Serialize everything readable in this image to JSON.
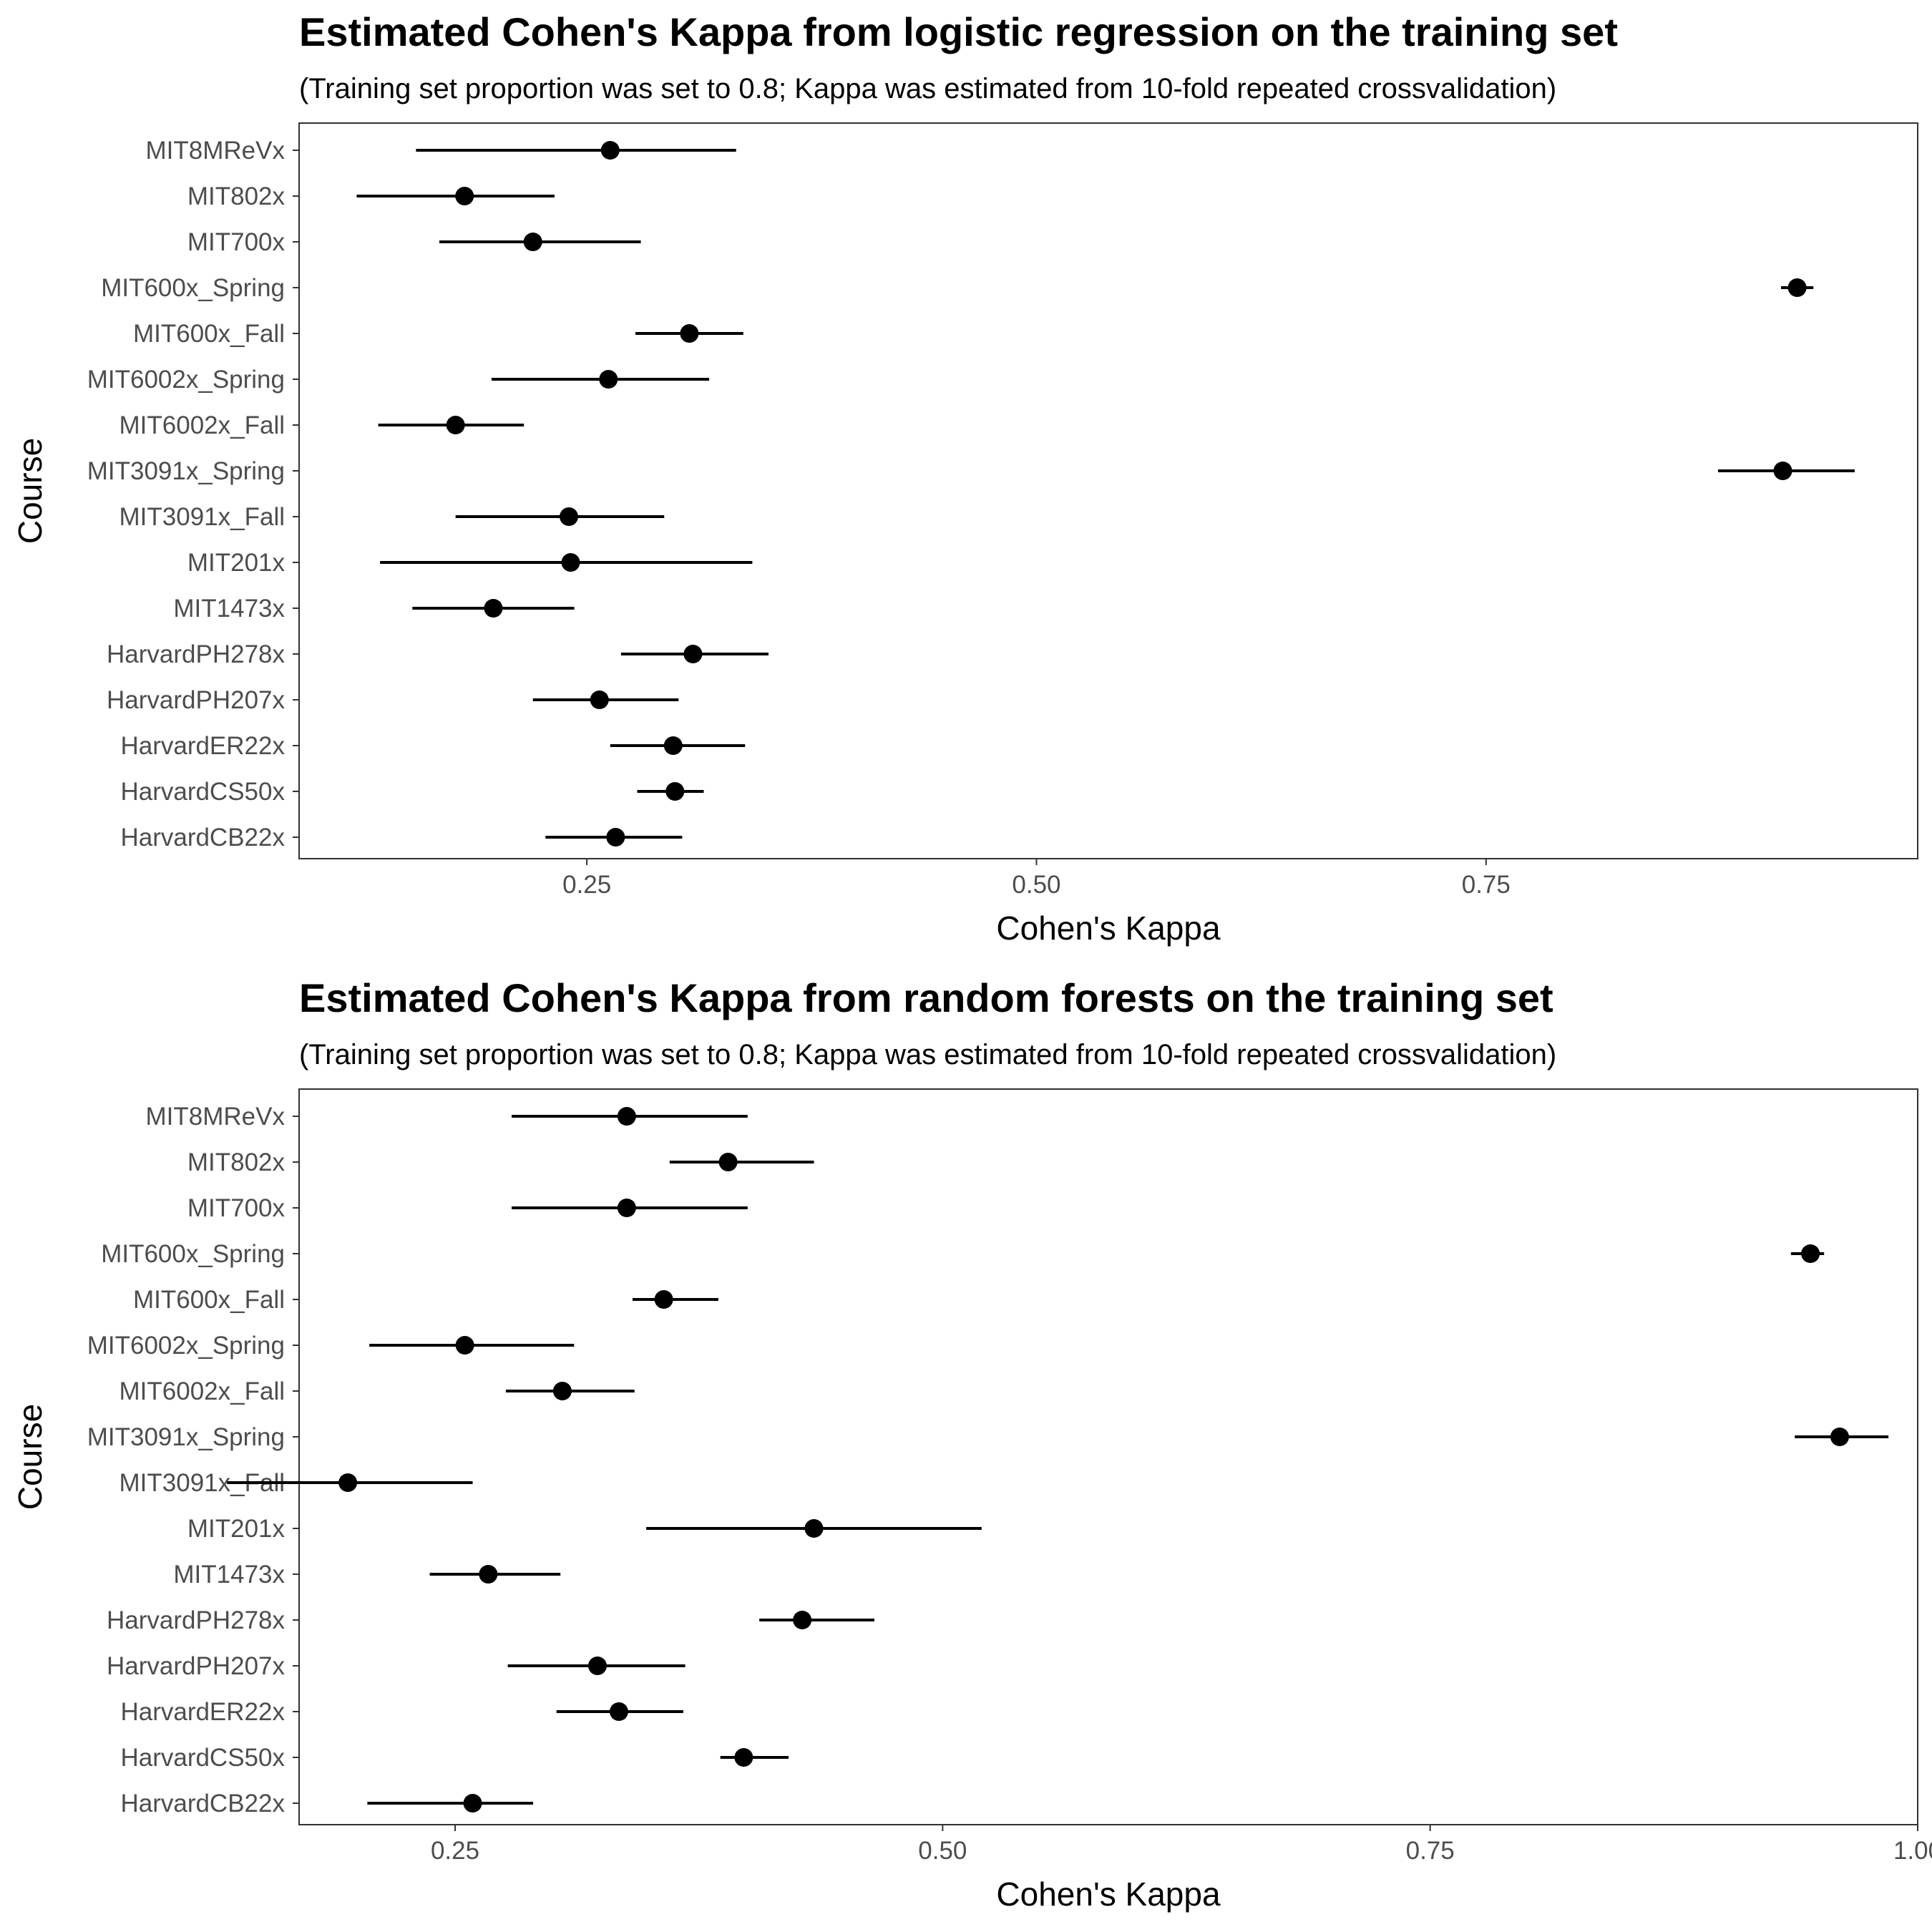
{
  "chart_data": [
    {
      "type": "scatter",
      "title": "Estimated Cohen's Kappa from logistic regression on the training set",
      "subtitle": "(Training set proportion was set to 0.8; Kappa was estimated from 10-fold repeated crossvalidation)",
      "xlabel": "Cohen's Kappa",
      "ylabel": "Course",
      "xlim": [
        0.09,
        0.99
      ],
      "x_ticks": [
        0.25,
        0.5,
        0.75
      ],
      "x_tick_labels": [
        "0.25",
        "0.50",
        "0.75"
      ],
      "grid": false,
      "categories": [
        "MIT8MReVx",
        "MIT802x",
        "MIT700x",
        "MIT600x_Spring",
        "MIT600x_Fall",
        "MIT6002x_Spring",
        "MIT6002x_Fall",
        "MIT3091x_Spring",
        "MIT3091x_Fall",
        "MIT201x",
        "MIT1473x",
        "HarvardPH278x",
        "HarvardPH207x",
        "HarvardER22x",
        "HarvardCS50x",
        "HarvardCB22x"
      ],
      "series": [
        {
          "values": [
            0.263,
            0.182,
            0.22,
            0.923,
            0.307,
            0.262,
            0.177,
            0.915,
            0.24,
            0.241,
            0.198,
            0.309,
            0.257,
            0.298,
            0.299,
            0.266
          ],
          "lower": [
            0.155,
            0.122,
            0.168,
            0.914,
            0.277,
            0.197,
            0.134,
            0.879,
            0.177,
            0.135,
            0.153,
            0.269,
            0.22,
            0.263,
            0.278,
            0.227
          ],
          "upper": [
            0.333,
            0.232,
            0.28,
            0.932,
            0.337,
            0.318,
            0.215,
            0.955,
            0.293,
            0.342,
            0.243,
            0.351,
            0.301,
            0.338,
            0.315,
            0.303
          ]
        }
      ]
    },
    {
      "type": "scatter",
      "title": "Estimated Cohen's Kappa from random forests on the training set",
      "subtitle": "(Training set proportion was set to 0.8; Kappa was estimated from 10-fold repeated crossvalidation)",
      "xlabel": "Cohen's Kappa",
      "ylabel": "Course",
      "xlim": [
        0.17,
        1.0
      ],
      "x_ticks": [
        0.25,
        0.5,
        0.75,
        1.0
      ],
      "x_tick_labels": [
        "0.25",
        "0.50",
        "0.75",
        "1.00"
      ],
      "grid": false,
      "categories": [
        "MIT8MReVx",
        "MIT802x",
        "MIT700x",
        "MIT600x_Spring",
        "MIT600x_Fall",
        "MIT6002x_Spring",
        "MIT6002x_Fall",
        "MIT3091x_Spring",
        "MIT3091x_Fall",
        "MIT201x",
        "MIT1473x",
        "HarvardPH278x",
        "HarvardPH207x",
        "HarvardER22x",
        "HarvardCS50x",
        "HarvardCB22x"
      ],
      "series": [
        {
          "values": [
            0.338,
            0.39,
            0.338,
            0.945,
            0.357,
            0.255,
            0.305,
            0.96,
            0.195,
            0.434,
            0.267,
            0.428,
            0.323,
            0.334,
            0.398,
            0.259
          ],
          "lower": [
            0.279,
            0.36,
            0.279,
            0.935,
            0.341,
            0.206,
            0.276,
            0.937,
            0.133,
            0.348,
            0.237,
            0.406,
            0.277,
            0.302,
            0.386,
            0.205
          ],
          "upper": [
            0.4,
            0.434,
            0.4,
            0.952,
            0.385,
            0.311,
            0.342,
            0.985,
            0.259,
            0.52,
            0.304,
            0.465,
            0.368,
            0.367,
            0.421,
            0.29
          ]
        }
      ]
    }
  ]
}
